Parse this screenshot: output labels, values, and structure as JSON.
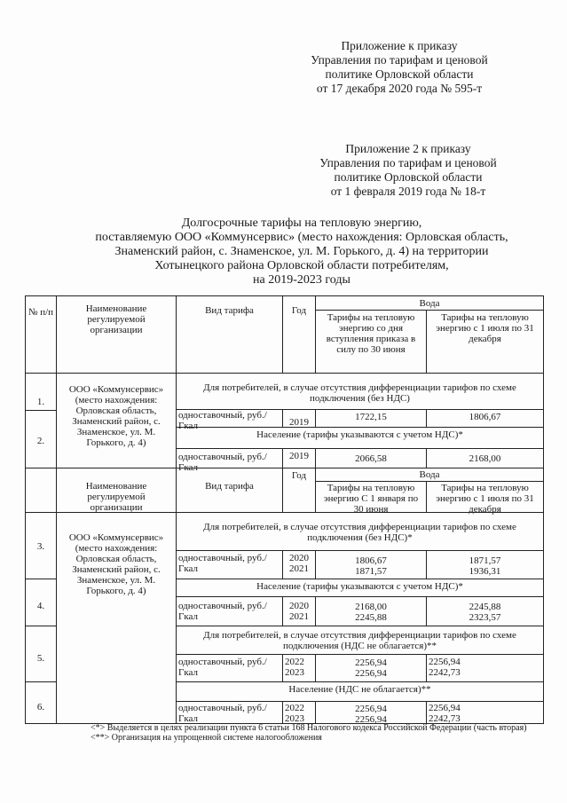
{
  "header1": {
    "l1": "Приложение к приказу",
    "l2": "Управления по тарифам и ценовой",
    "l3": "политике Орловской области",
    "l4": "от 17 декабря 2020 года № 595-т"
  },
  "header2": {
    "l1": "Приложение 2 к приказу",
    "l2": "Управления по тарифам и ценовой",
    "l3": "политике Орловской области",
    "l4": "от 1 февраля 2019 года № 18-т"
  },
  "title": {
    "l1": "Долгосрочные тарифы на тепловую энергию,",
    "l2": "поставляемую ООО «Коммунсервис» (место нахождения: Орловская область,",
    "l3": "Знаменский район, с. Знаменское, ул. М. Горького, д. 4) на территории",
    "l4": "Хотынецкого района Орловской области потребителям,",
    "l5": "на 2019-2023 годы"
  },
  "table": {
    "h_num": "№ п/п",
    "h_org": "Наименование регулируемой организации",
    "h_type": "Вид тарифа",
    "h_year": "Год",
    "h_water": "Вода",
    "h_p1a": "Тарифы на тепловую энергию со дня вступления приказа в силу по 30 июня",
    "h_p2": "Тарифы на тепловую энергию с 1 июля по 31 декабря",
    "h_p1b": "Тарифы на тепловую энергию С 1 января по 30 июня",
    "org": "ООО «Коммунсервис» (место нахождения: Орловская область, Знаменский район, с. Знаменское, ул. М. Горького, д. 4)",
    "type": "одноставочный, руб./Гкал",
    "g1": "Для потребителей, в случае отсутствия дифференциации тарифов по схеме подключения (без НДС)",
    "g2": "Население (тарифы указываются с учетом НДС)*",
    "g3": "Для потребителей, в случае отсутствия дифференциации тарифов по схеме подключения (без НДС)*",
    "g5": "Для потребителей, в случае отсутствия дифференциации тарифов по схеме подключения (НДС не облагается)**",
    "g6": "Население (НДС не облагается)**",
    "rows": [
      {
        "num": "1.",
        "years": "2019",
        "v1": "1722,15",
        "v2": "1806,67"
      },
      {
        "num": "2.",
        "years": "2019",
        "v1": "2066,58",
        "v2": "2168,00"
      },
      {
        "num": "3.",
        "y1": "2020",
        "y2": "2021",
        "v1a": "1806,67",
        "v1b": "1871,57",
        "v2a": "1871,57",
        "v2b": "1936,31"
      },
      {
        "num": "4.",
        "y1": "2020",
        "y2": "2021",
        "v1a": "2168,00",
        "v1b": "2245,88",
        "v2a": "2245,88",
        "v2b": "2323,57"
      },
      {
        "num": "5.",
        "y1": "2022",
        "y2": "2023",
        "v1a": "2256,94",
        "v1b": "2256,94",
        "v2a": "2256,94",
        "v2b": "2242,73"
      },
      {
        "num": "6.",
        "y1": "2022",
        "y2": "2023",
        "v1a": "2256,94",
        "v1b": "2256,94",
        "v2a": "2256,94",
        "v2b": "2242,73"
      }
    ]
  },
  "footnotes": {
    "f1": "<*> Выделяется в целях реализации пункта 6 статьи 168 Налогового кодекса Российской Федерации (часть вторая)",
    "f2": "<**> Организация на упрощенной системе налогообложения"
  }
}
